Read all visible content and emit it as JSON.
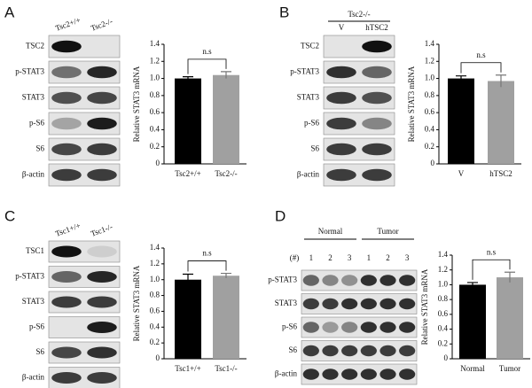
{
  "panels": [
    {
      "letter": "A",
      "lanes": [
        "Tsc2+/+",
        "Tsc2-/-"
      ],
      "rows": [
        "TSC2",
        "p-STAT3",
        "STAT3",
        "p-S6",
        "S6",
        "β-actin"
      ]
    },
    {
      "letter": "B",
      "group": "Tsc2-/-",
      "lanes": [
        "V",
        "hTSC2"
      ],
      "rows": [
        "TSC2",
        "p-STAT3",
        "STAT3",
        "p-S6",
        "S6",
        "β-actin"
      ]
    },
    {
      "letter": "C",
      "lanes": [
        "Tsc1+/+",
        "Tsc1-/-"
      ],
      "rows": [
        "TSC1",
        "p-STAT3",
        "STAT3",
        "p-S6",
        "S6",
        "β-actin"
      ]
    },
    {
      "letter": "D",
      "groups": [
        "Normal",
        "Tumor"
      ],
      "lane_header": "(#)",
      "lanes": [
        "1",
        "2",
        "3",
        "1",
        "2",
        "3"
      ],
      "rows": [
        "p-STAT3",
        "STAT3",
        "p-S6",
        "S6",
        "β-actin"
      ]
    }
  ],
  "chart_data": [
    {
      "type": "bar",
      "y_label": "Relative STAT3 mRNA",
      "categories": [
        "Tsc2+/+",
        "Tsc2-/-"
      ],
      "values": [
        1.0,
        1.04
      ],
      "errors": [
        0.02,
        0.04
      ],
      "colors": [
        "#000000",
        "#a0a0a0"
      ],
      "annotation": "n.s",
      "ylim": [
        0,
        1.4
      ],
      "yticks": [
        0,
        0.2,
        0.4,
        0.6,
        0.8,
        {
          "value": 1,
          "label": "1.0"
        },
        1.2,
        1.4
      ]
    },
    {
      "type": "bar",
      "y_label": "Relative STAT3 mRNA",
      "categories": [
        "V",
        "hTSC2"
      ],
      "values": [
        1.0,
        0.97
      ],
      "errors": [
        0.03,
        0.07
      ],
      "colors": [
        "#000000",
        "#a0a0a0"
      ],
      "annotation": "n.s",
      "ylim": [
        0,
        1.4
      ],
      "yticks": [
        0,
        0.2,
        0.4,
        0.6,
        0.8,
        {
          "value": 1,
          "label": "1.0"
        },
        1.2,
        1.4
      ]
    },
    {
      "type": "bar",
      "y_label": "Relative STAT3 mRNA",
      "categories": [
        "Tsc1+/+",
        "Tsc1-/-"
      ],
      "values": [
        1.0,
        1.05
      ],
      "errors": [
        0.07,
        0.03
      ],
      "colors": [
        "#000000",
        "#a0a0a0"
      ],
      "annotation": "n.s",
      "ylim": [
        0,
        1.4
      ],
      "yticks": [
        0,
        0.2,
        0.4,
        0.6,
        0.8,
        {
          "value": 1,
          "label": "1.0"
        },
        1.2,
        1.4
      ]
    },
    {
      "type": "bar",
      "y_label": "Relative STAT3 mRNA",
      "categories": [
        "Normal",
        "Tumor"
      ],
      "values": [
        1.0,
        1.1
      ],
      "errors": [
        0.03,
        0.07
      ],
      "colors": [
        "#000000",
        "#a0a0a0"
      ],
      "annotation": "n.s",
      "ylim": [
        0,
        1.4
      ],
      "yticks": [
        0,
        0.2,
        0.4,
        0.6,
        0.8,
        {
          "value": 1,
          "label": "1.0"
        },
        1.2,
        1.4
      ]
    }
  ]
}
